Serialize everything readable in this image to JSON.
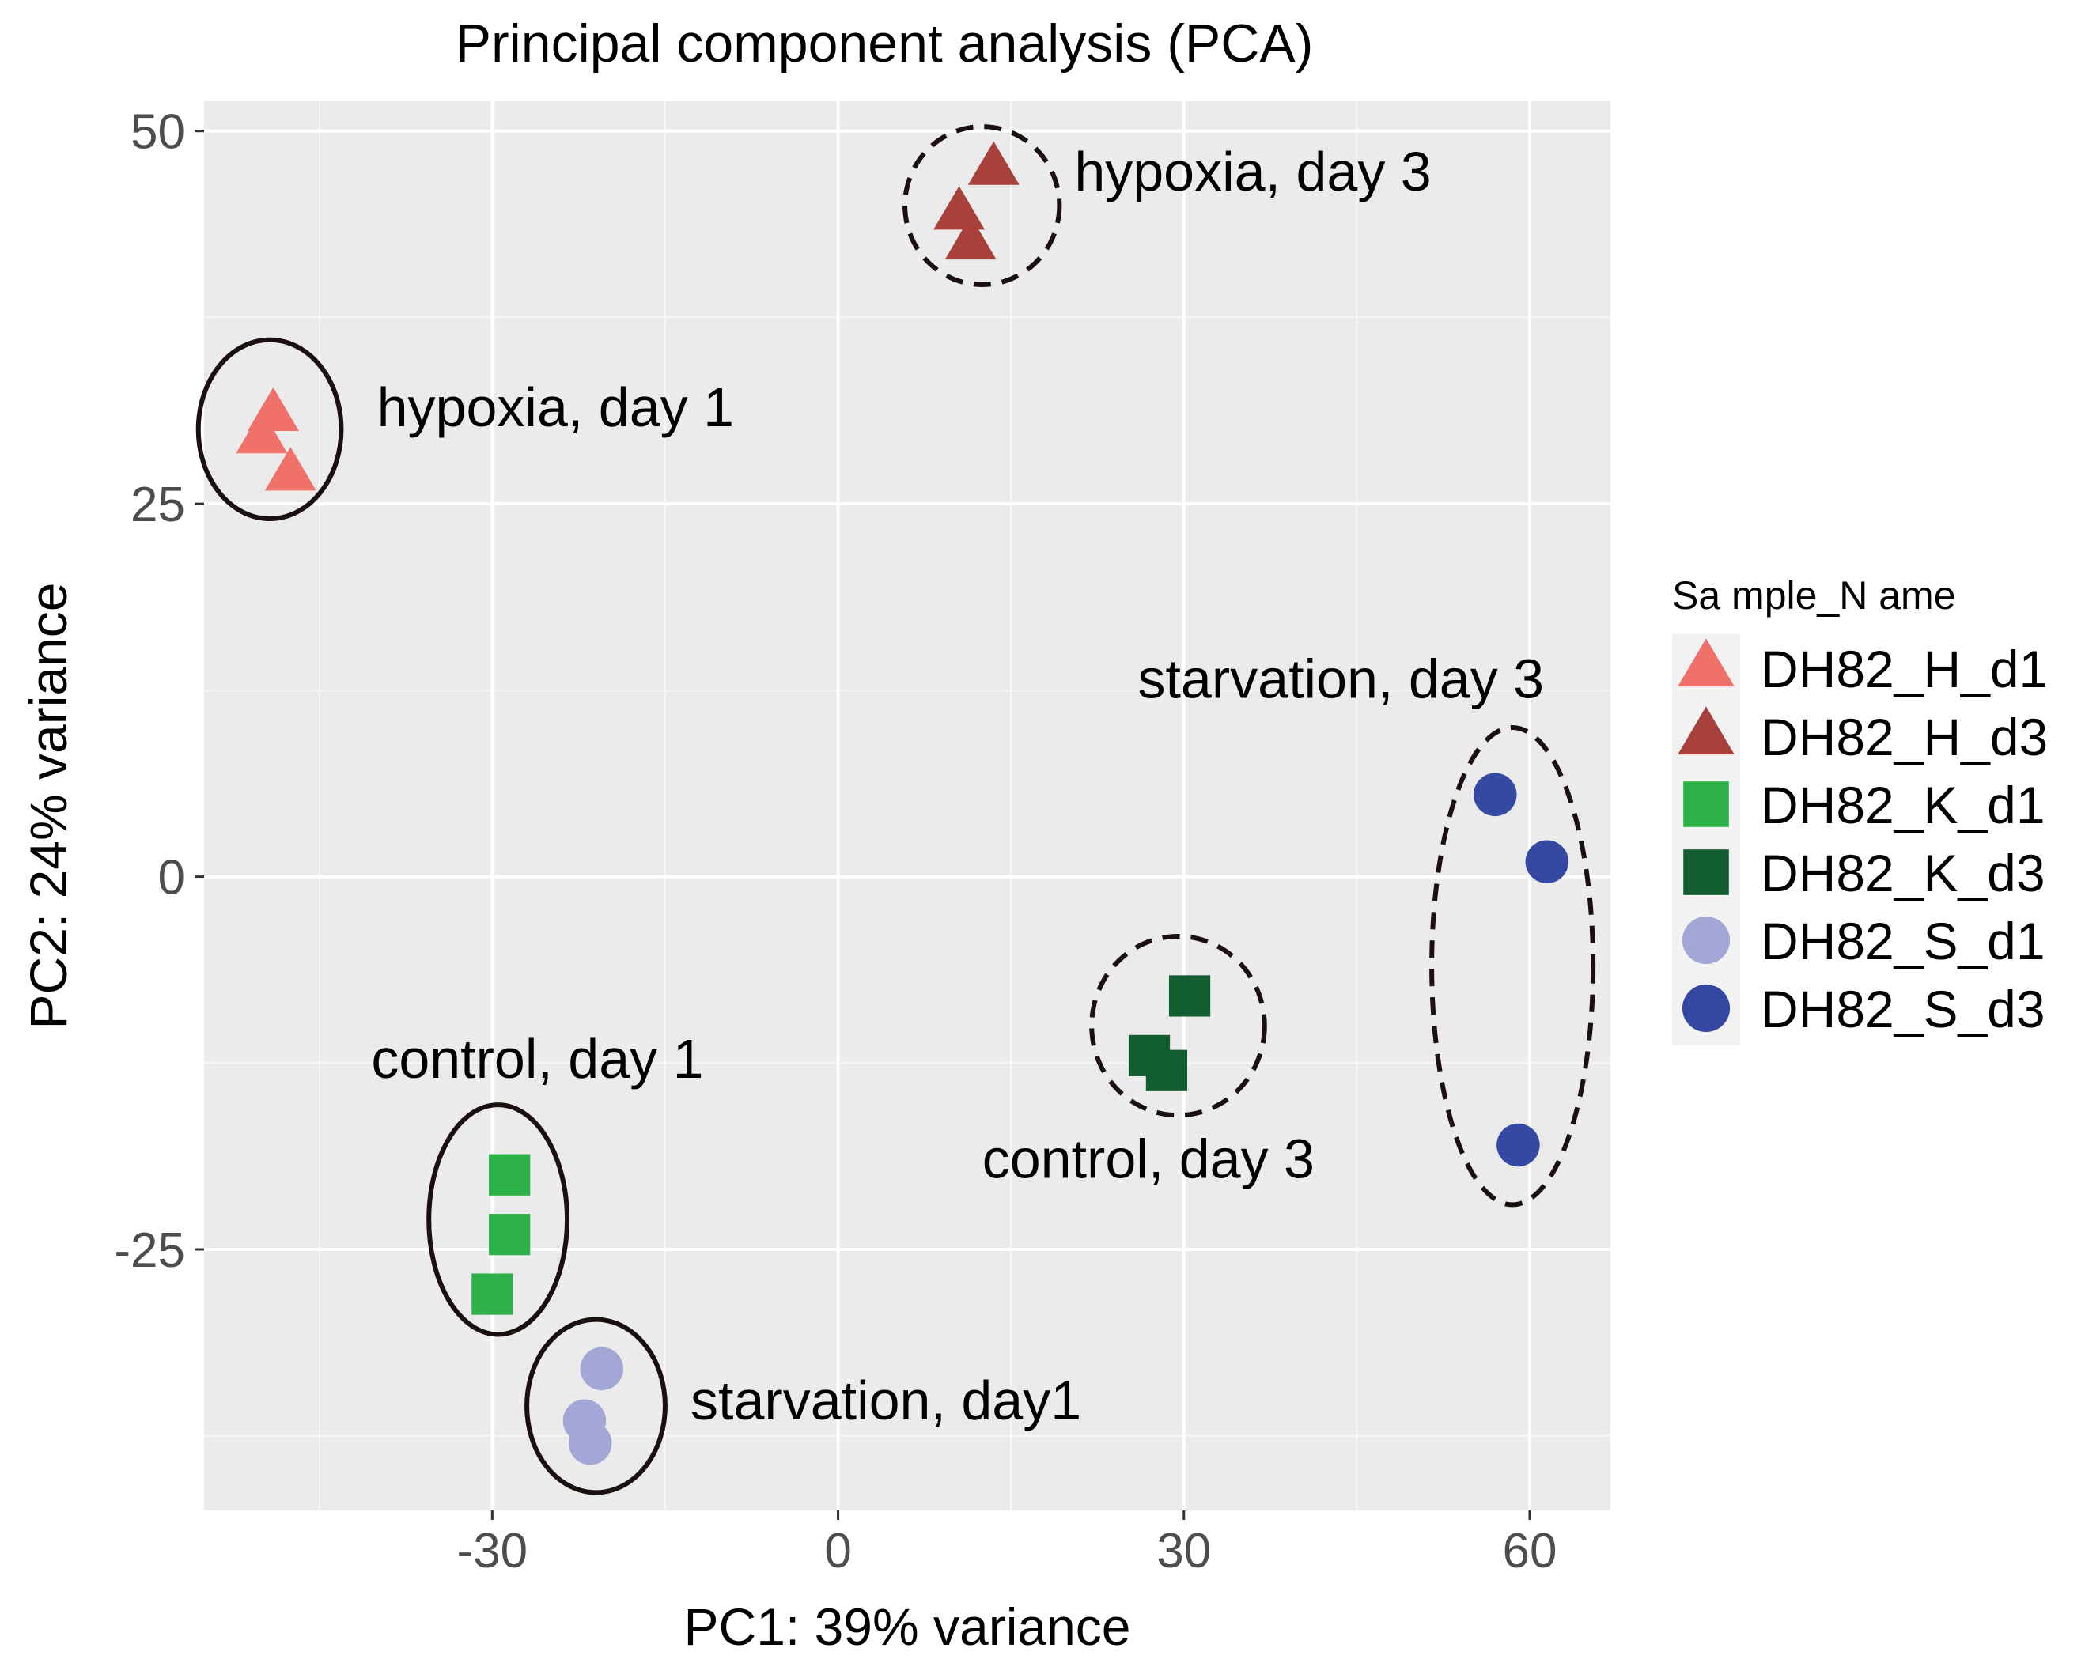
{
  "chart_data": {
    "type": "scatter",
    "title": "Principal component analysis (PCA)",
    "xlabel": "PC1: 39% variance",
    "ylabel": "PC2: 24% variance",
    "xlim": [
      -55,
      67
    ],
    "ylim": [
      -42.5,
      52
    ],
    "xticks": [
      -30,
      0,
      30,
      60
    ],
    "xtick_labels": [
      "-30",
      "0",
      "30",
      "60"
    ],
    "yticks": [
      -25,
      0,
      25,
      50
    ],
    "ytick_labels": [
      "-25",
      "0",
      "25",
      "50"
    ],
    "grid": true,
    "legend": {
      "title": "Sa mple_N ame",
      "placement": "right"
    },
    "series": [
      {
        "name": "DH82_H_d1",
        "shape": "triangle",
        "color": "#F0706A",
        "points": [
          {
            "x": -49,
            "y": 31
          },
          {
            "x": -50,
            "y": 29.5
          },
          {
            "x": -47.5,
            "y": 27
          }
        ]
      },
      {
        "name": "DH82_H_d3",
        "shape": "triangle",
        "color": "#A8413C",
        "points": [
          {
            "x": 13.5,
            "y": 47.5
          },
          {
            "x": 10.5,
            "y": 44.5
          },
          {
            "x": 11.5,
            "y": 42.5
          }
        ]
      },
      {
        "name": "DH82_K_d1",
        "shape": "square",
        "color": "#2DB24A",
        "points": [
          {
            "x": -28.5,
            "y": -20
          },
          {
            "x": -28.5,
            "y": -24
          },
          {
            "x": -30,
            "y": -28
          }
        ]
      },
      {
        "name": "DH82_K_d3",
        "shape": "square",
        "color": "#135E30",
        "points": [
          {
            "x": 30.5,
            "y": -8
          },
          {
            "x": 27,
            "y": -12
          },
          {
            "x": 28.5,
            "y": -13
          }
        ]
      },
      {
        "name": "DH82_S_d1",
        "shape": "circle",
        "color": "#A2A7D6",
        "points": [
          {
            "x": -20.5,
            "y": -33
          },
          {
            "x": -22,
            "y": -36.5
          },
          {
            "x": -21.5,
            "y": -38
          }
        ]
      },
      {
        "name": "DH82_S_d3",
        "shape": "circle",
        "color": "#3549A2",
        "points": [
          {
            "x": 57,
            "y": 5.5
          },
          {
            "x": 61.5,
            "y": 1
          },
          {
            "x": 59,
            "y": -18
          }
        ]
      }
    ],
    "annotations": [
      {
        "text": "hypoxia, day 3",
        "x": 20.5,
        "y": 46,
        "border": "dashed",
        "ellipse": {
          "cx": 12.5,
          "cy": 45,
          "rx": 6.7,
          "ry": 5.3
        }
      },
      {
        "text": "hypoxia, day 1",
        "x": -40,
        "y": 30.2,
        "border": "solid",
        "ellipse": {
          "cx": -49.3,
          "cy": 30,
          "rx": 6.2,
          "ry": 6.0
        }
      },
      {
        "text": "starvation, day 3",
        "x": 26,
        "y": 12,
        "border": "dashed",
        "ellipse": {
          "cx": 58.5,
          "cy": -6,
          "rx": 7.0,
          "ry": 16.0
        }
      },
      {
        "text": "control, day 3",
        "x": 12.5,
        "y": -20.2,
        "border": "dashed",
        "ellipse": {
          "cx": 29.5,
          "cy": -10,
          "rx": 7.5,
          "ry": 6.0
        }
      },
      {
        "text": "control, day 1",
        "x": -40.5,
        "y": -13.5,
        "border": "solid",
        "ellipse": {
          "cx": -29.5,
          "cy": -23,
          "rx": 6.0,
          "ry": 7.7
        }
      },
      {
        "text": "starvation, day1",
        "x": -12.8,
        "y": -36.4,
        "border": "solid",
        "ellipse": {
          "cx": -21,
          "cy": -35.5,
          "rx": 6.0,
          "ry": 5.8
        }
      }
    ]
  }
}
